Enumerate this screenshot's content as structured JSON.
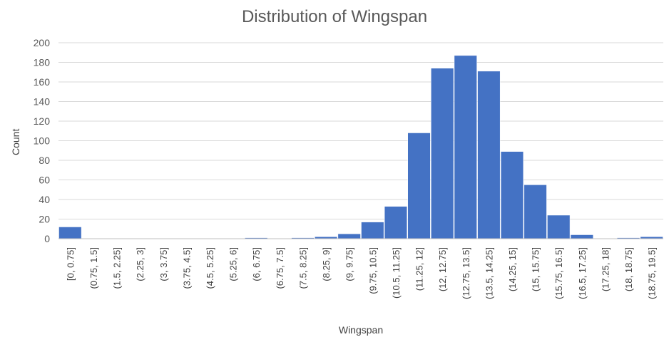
{
  "chart_data": {
    "type": "bar",
    "title": "Distribution of Wingspan",
    "xlabel": "Wingspan",
    "ylabel": "Count",
    "ylim": [
      0,
      200
    ],
    "yticks": [
      0,
      20,
      40,
      60,
      80,
      100,
      120,
      140,
      160,
      180,
      200
    ],
    "grid": true,
    "categories": [
      "[0, 0.75]",
      "(0.75, 1.5]",
      "(1.5, 2.25]",
      "(2.25, 3]",
      "(3, 3.75]",
      "(3.75, 4.5]",
      "(4.5, 5.25]",
      "(5.25, 6]",
      "(6, 6.75]",
      "(6.75, 7.5]",
      "(7.5, 8.25]",
      "(8.25, 9]",
      "(9, 9.75]",
      "(9.75, 10.5]",
      "(10.5, 11.25]",
      "(11.25, 12]",
      "(12, 12.75]",
      "(12.75, 13.5]",
      "(13.5, 14.25]",
      "(14.25, 15]",
      "(15, 15.75]",
      "(15.75, 16.5]",
      "(16.5, 17.25]",
      "(17.25, 18]",
      "(18, 18.75]",
      "(18.75, 19.5]"
    ],
    "values": [
      12,
      0,
      0,
      0,
      0,
      0,
      0,
      0,
      1,
      0,
      1,
      2,
      5,
      17,
      33,
      108,
      174,
      187,
      171,
      89,
      55,
      24,
      4,
      0,
      1,
      2
    ],
    "bar_color": "#4472C4",
    "grid_color": "#D9D9D9"
  }
}
